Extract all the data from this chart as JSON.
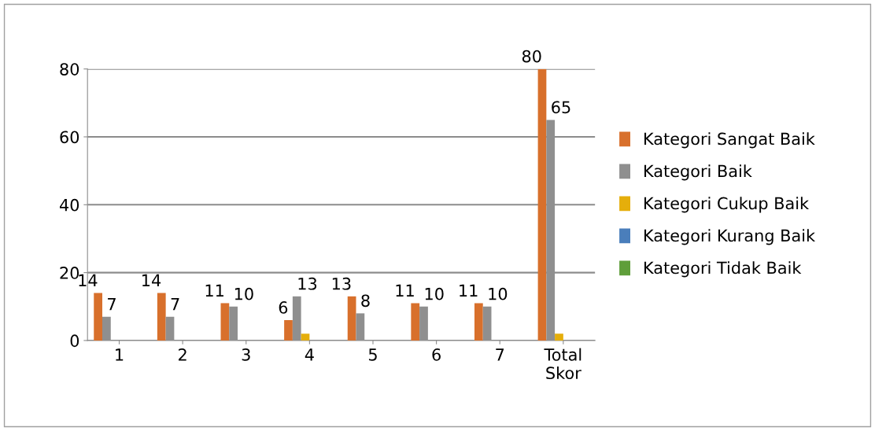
{
  "chart_data": {
    "type": "bar",
    "categories": [
      "1",
      "2",
      "3",
      "4",
      "5",
      "6",
      "7",
      "Total\nSkor"
    ],
    "series": [
      {
        "name": "Kategori Sangat Baik",
        "color": "#d8702c",
        "values": [
          14,
          14,
          11,
          6,
          13,
          11,
          11,
          80
        ],
        "value_labels": [
          "14",
          "14",
          "11",
          "6",
          "13",
          "11",
          "11",
          "80"
        ]
      },
      {
        "name": "Kategori Baik",
        "color": "#8f8f8f",
        "values": [
          7,
          7,
          10,
          13,
          8,
          10,
          10,
          65
        ],
        "value_labels": [
          "7",
          "7",
          "10",
          "13",
          "8",
          "10",
          "10",
          "65"
        ]
      },
      {
        "name": "Kategori Cukup Baik",
        "color": "#e5ae0b",
        "values": [
          0,
          0,
          0,
          2,
          0,
          0,
          0,
          2
        ]
      },
      {
        "name": "Kategori Kurang Baik",
        "color": "#4a7ebb",
        "values": [
          0,
          0,
          0,
          0,
          0,
          0,
          0,
          0
        ]
      },
      {
        "name": "Kategori Tidak Baik",
        "color": "#5f9e3a",
        "values": [
          0,
          0,
          0,
          0,
          0,
          0,
          0,
          0
        ]
      }
    ],
    "ylim": [
      0,
      80
    ],
    "yticks": [
      0,
      20,
      40,
      60,
      80
    ],
    "grid": "y",
    "legend": "right"
  }
}
